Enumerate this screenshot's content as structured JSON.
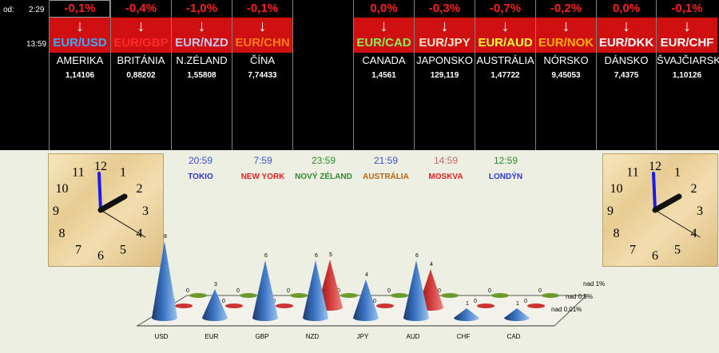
{
  "header": {
    "od_label": "od:",
    "od_time": "2:29",
    "time2": "13:59"
  },
  "pairs": [
    {
      "change": "-0,1%",
      "pair": "EUR/USD",
      "pair_color": "#3aa8ff",
      "country": "AMERIKA",
      "rate": "1,14106"
    },
    {
      "change": "-0,4%",
      "pair": "EUR/GBP",
      "pair_color": "#ff2a2a",
      "country": "BRITÁNIA",
      "rate": "0,88202"
    },
    {
      "change": "-1,0%",
      "pair": "EUR/NZD",
      "pair_color": "#c9c9ee",
      "country": "N.ZÉLAND",
      "rate": "1,55808"
    },
    {
      "change": "-0,1%",
      "pair": "EUR/CHN",
      "pair_color": "#ff7a1a",
      "country": "ČÍNA",
      "rate": "7,74433"
    },
    {
      "change": "",
      "pair": "",
      "pair_color": "#ffffff",
      "country": "",
      "rate": ""
    },
    {
      "change": "0,0%",
      "pair": "EUR/CAD",
      "pair_color": "#88ee55",
      "country": "CANADA",
      "rate": "1,4561"
    },
    {
      "change": "-0,3%",
      "pair": "EUR/JPY",
      "pair_color": "#ffe6d0",
      "country": "JAPONSKO",
      "rate": "129,119"
    },
    {
      "change": "-0,7%",
      "pair": "EUR/AUD",
      "pair_color": "#ffff33",
      "country": "AUSTRÁLIA",
      "rate": "1,47722"
    },
    {
      "change": "-0,2%",
      "pair": "EUR/NOK",
      "pair_color": "#ffb000",
      "country": "NÓRSKO",
      "rate": "9,45053"
    },
    {
      "change": "0,0%",
      "pair": "EUR/DKK",
      "pair_color": "#ffffff",
      "country": "DÁNSKO",
      "rate": "7,4375"
    },
    {
      "change": "-0,1%",
      "pair": "EUR/CHF",
      "pair_color": "#ffffff",
      "country": "ŠVAJČIARSKO",
      "rate": "1,10126"
    }
  ],
  "cities": [
    {
      "time": "20:59",
      "name": "TOKIO",
      "time_color": "#3a52c8",
      "name_color": "#2a3ad0"
    },
    {
      "time": "7:59",
      "name": "NEW YORK",
      "time_color": "#3a52c8",
      "name_color": "#e02020"
    },
    {
      "time": "23:59",
      "name": "NOVÝ ZÉLAND",
      "time_color": "#2f8a2f",
      "name_color": "#2f8a2f"
    },
    {
      "time": "21:59",
      "name": "AUSTRÁLIA",
      "time_color": "#3a52c8",
      "name_color": "#b8620e"
    },
    {
      "time": "14:59",
      "name": "MOSKVA",
      "time_color": "#c06a6a",
      "name_color": "#e02020"
    },
    {
      "time": "12:59",
      "name": "LONDÝN",
      "time_color": "#2f8a2f",
      "name_color": "#2a3ad0"
    }
  ],
  "clock": {
    "numerals": [
      "12",
      "1",
      "2",
      "3",
      "4",
      "5",
      "6",
      "7",
      "8",
      "9",
      "10",
      "11"
    ]
  },
  "chart_data": {
    "type": "bar",
    "subtype": "3d-cone",
    "categories": [
      "USD",
      "EUR",
      "GBP",
      "NZD",
      "JPY",
      "AUD",
      "CHF",
      "CAD"
    ],
    "series": [
      {
        "name": "nad 1%",
        "values": [
          0,
          0,
          0,
          0,
          0,
          0,
          0,
          0
        ],
        "color": "#6a9a2a"
      },
      {
        "name": "nad 0,5%",
        "values": [
          0,
          0,
          0,
          5,
          0,
          4,
          0,
          0
        ],
        "color": "#cc3333"
      },
      {
        "name": "nad 0,01%",
        "values": [
          8,
          3,
          6,
          6,
          4,
          6,
          1,
          1
        ],
        "color": "#3a74c4"
      }
    ],
    "front_labels": [
      0,
      0,
      0,
      0,
      0,
      0,
      0,
      0
    ],
    "front_labels_visible": [
      true,
      true,
      true,
      false,
      true,
      false,
      true,
      false
    ]
  }
}
